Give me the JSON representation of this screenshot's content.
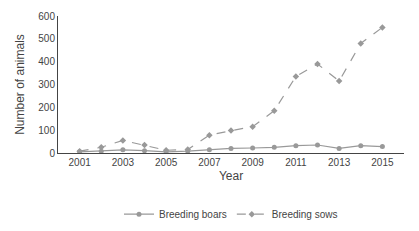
{
  "chart_data": {
    "type": "line",
    "xlabel": "Year",
    "ylabel": "Number of animals",
    "x": [
      2001,
      2002,
      2003,
      2004,
      2005,
      2006,
      2007,
      2008,
      2009,
      2010,
      2011,
      2012,
      2013,
      2014,
      2015
    ],
    "series": [
      {
        "name": "Breeding boars",
        "color": "#999999",
        "marker": "circle",
        "line_style": "solid",
        "values": [
          5,
          8,
          14,
          10,
          5,
          8,
          14,
          20,
          22,
          25,
          32,
          35,
          20,
          32,
          28
        ]
      },
      {
        "name": "Breeding sows",
        "color": "#999999",
        "marker": "diamond",
        "line_style": "dashed",
        "values": [
          8,
          25,
          55,
          35,
          12,
          15,
          78,
          98,
          115,
          185,
          335,
          390,
          315,
          480,
          550
        ]
      }
    ],
    "xlim": [
      2000,
      2016
    ],
    "xticks": [
      2001,
      2003,
      2005,
      2007,
      2009,
      2011,
      2013,
      2015
    ],
    "ylim": [
      0,
      600
    ],
    "yticks": [
      0,
      100,
      200,
      300,
      400,
      500,
      600
    ],
    "grid": false,
    "legend": "bottom"
  }
}
